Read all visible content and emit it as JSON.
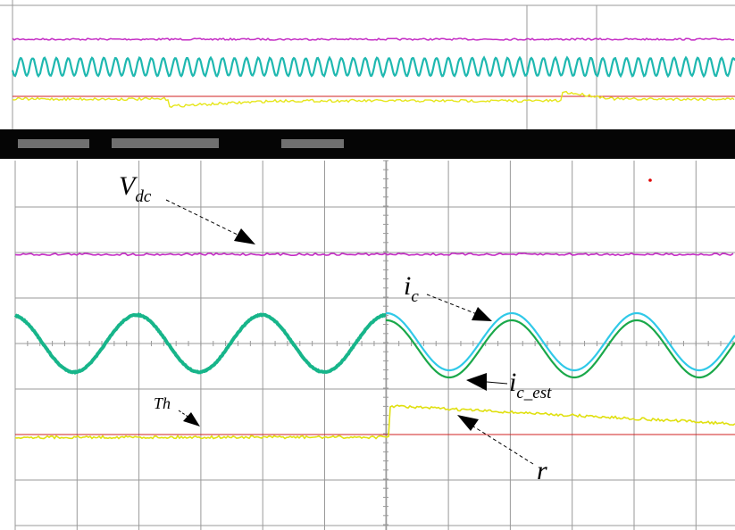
{
  "labels": {
    "vdc": {
      "main": "V",
      "sub": "dc"
    },
    "ic": {
      "main": "i",
      "sub": "c"
    },
    "ic_est": {
      "main": "i",
      "sub": "c_est"
    },
    "th": "Th",
    "r": "r"
  }
}
